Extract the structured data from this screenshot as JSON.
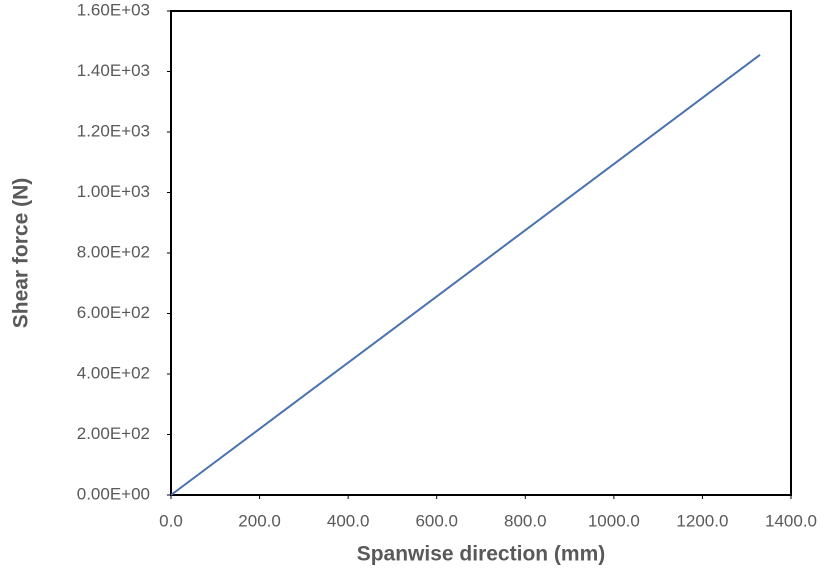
{
  "chart_data": {
    "type": "line",
    "x_label": "Spanwise direction (mm)",
    "y_label": "Shear force (N)",
    "series": [
      {
        "color": "#4a72b0",
        "x": [
          0,
          1330
        ],
        "values": [
          0,
          1455
        ]
      }
    ],
    "xlim": [
      0,
      1400
    ],
    "xticks": [
      {
        "value": 0,
        "label": "0.0"
      },
      {
        "value": 200,
        "label": "200.0"
      },
      {
        "value": 400,
        "label": "400.0"
      },
      {
        "value": 600,
        "label": "600.0"
      },
      {
        "value": 800,
        "label": "800.0"
      },
      {
        "value": 1000,
        "label": "1000.0"
      },
      {
        "value": 1200,
        "label": "1200.0"
      },
      {
        "value": 1400,
        "label": "1400.0"
      }
    ],
    "ylim": [
      0,
      1600
    ],
    "yticks": [
      {
        "value": 0,
        "label": "0.00E+00"
      },
      {
        "value": 200,
        "label": "2.00E+02"
      },
      {
        "value": 400,
        "label": "4.00E+02"
      },
      {
        "value": 600,
        "label": "6.00E+02"
      },
      {
        "value": 800,
        "label": "8.00E+02"
      },
      {
        "value": 1000,
        "label": "1.00E+03"
      },
      {
        "value": 1200,
        "label": "1.20E+03"
      },
      {
        "value": 1400,
        "label": "1.40E+03"
      },
      {
        "value": 1600,
        "label": "1.60E+03"
      }
    ],
    "grid": false
  }
}
